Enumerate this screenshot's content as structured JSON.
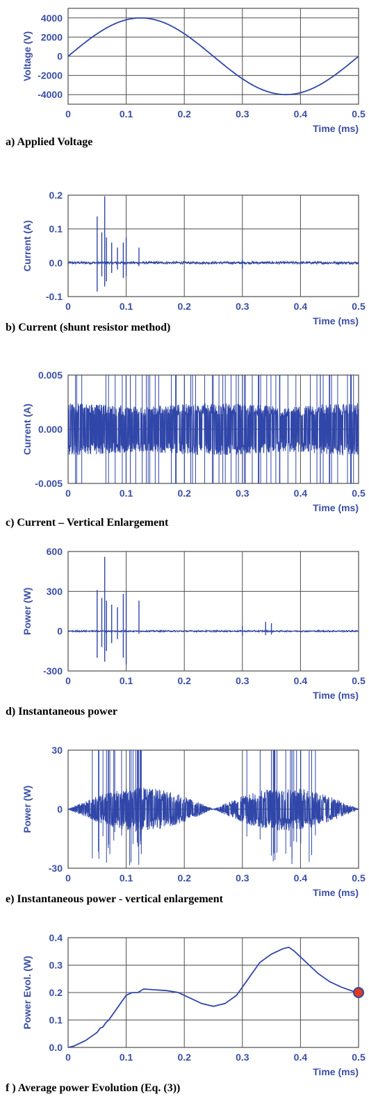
{
  "colors": {
    "line": "#3046a8",
    "text": "#3a4ea6",
    "grid": "#4d4d4d",
    "marker": "#e03a20"
  },
  "chart_data": [
    {
      "type": "line",
      "caption": "a) Applied Voltage",
      "ylabel": "Voltage (V)",
      "xlabel": "Time (ms)",
      "xlim": [
        0,
        0.5
      ],
      "ylim": [
        -5000,
        5000
      ],
      "xticks": [
        "0",
        "0.1",
        "0.2",
        "0.3",
        "0.4",
        "0.5"
      ],
      "yticks": [
        {
          "v": 4000,
          "t": "4000"
        },
        {
          "v": 2000,
          "t": "2000"
        },
        {
          "v": 0,
          "t": "0"
        },
        {
          "v": -2000,
          "t": "-2000"
        },
        {
          "v": -4000,
          "t": "-4000"
        }
      ],
      "grid": true,
      "series": [
        {
          "kind": "sine",
          "amplitude": 4000,
          "period": 0.5
        }
      ]
    },
    {
      "type": "line",
      "caption": "b) Current (shunt resistor method)",
      "ylabel": "Current (A)",
      "xlabel": "Time (ms)",
      "xlim": [
        0,
        0.5
      ],
      "ylim": [
        -0.1,
        0.2
      ],
      "xticks": [
        "0",
        "0.1",
        "0.2",
        "0.3",
        "0.4",
        "0.5"
      ],
      "yticks": [
        {
          "v": 0.2,
          "t": "0.2"
        },
        {
          "v": 0.1,
          "t": "0.1"
        },
        {
          "v": 0.0,
          "t": "0.0"
        },
        {
          "v": -0.1,
          "t": "-0.1"
        }
      ],
      "grid": true,
      "series": [
        {
          "kind": "noise",
          "noise": 0.004,
          "spikes": [
            [
              0.05,
              0.137,
              -0.085
            ],
            [
              0.058,
              0.09,
              -0.04
            ],
            [
              0.063,
              0.197,
              -0.07
            ],
            [
              0.066,
              0.075,
              -0.055
            ],
            [
              0.075,
              0.06,
              -0.03
            ],
            [
              0.085,
              0.045,
              -0.02
            ],
            [
              0.095,
              0.06,
              -0.045
            ],
            [
              0.1,
              0.075,
              -0.04
            ],
            [
              0.122,
              0.045,
              -0.01
            ],
            [
              0.3,
              0.01,
              -0.018
            ]
          ]
        }
      ]
    },
    {
      "type": "line",
      "caption": "c) Current – Vertical Enlargement",
      "ylabel": "Current (A)",
      "xlabel": "Time (ms)",
      "xlim": [
        0,
        0.5
      ],
      "ylim": [
        -0.005,
        0.005
      ],
      "xticks": [
        "0",
        "0.1",
        "0.2",
        "0.3",
        "0.4",
        "0.5"
      ],
      "yticks": [
        {
          "v": 0.005,
          "t": "0.005"
        },
        {
          "v": 0.0,
          "t": "0.000"
        },
        {
          "v": -0.005,
          "t": "-0.005"
        }
      ],
      "grid": true,
      "series": [
        {
          "kind": "band",
          "band": 0.0024,
          "spikeDensity": 60
        }
      ]
    },
    {
      "type": "line",
      "caption": "d) Instantaneous power",
      "ylabel": "Power (W)",
      "xlabel": "Time (ms)",
      "xlim": [
        0,
        0.5
      ],
      "ylim": [
        -300,
        600
      ],
      "xticks": [
        "0",
        "0.1",
        "0.2",
        "0.3",
        "0.4",
        "0.5"
      ],
      "yticks": [
        {
          "v": 600,
          "t": "600"
        },
        {
          "v": 300,
          "t": "300"
        },
        {
          "v": 0,
          "t": "0"
        },
        {
          "v": -300,
          "t": "-300"
        }
      ],
      "grid": true,
      "series": [
        {
          "kind": "noise",
          "noise": 6,
          "spikes": [
            [
              0.05,
              310,
              -200
            ],
            [
              0.058,
              250,
              -120
            ],
            [
              0.063,
              560,
              -230
            ],
            [
              0.066,
              230,
              -150
            ],
            [
              0.075,
              200,
              -90
            ],
            [
              0.085,
              180,
              -60
            ],
            [
              0.095,
              280,
              -200
            ],
            [
              0.1,
              300,
              -250
            ],
            [
              0.122,
              230,
              -20
            ],
            [
              0.34,
              70,
              -30
            ],
            [
              0.35,
              60,
              -25
            ],
            [
              0.3,
              40,
              -35
            ]
          ]
        }
      ]
    },
    {
      "type": "line",
      "caption": "e) Instantaneous power - vertical enlargement",
      "ylabel": "Power (W)",
      "xlabel": "Time (ms)",
      "xlim": [
        0,
        0.5
      ],
      "ylim": [
        -30,
        30
      ],
      "xticks": [
        "0",
        "0.1",
        "0.2",
        "0.3",
        "0.4",
        "0.5"
      ],
      "yticks": [
        {
          "v": 30,
          "t": "30"
        },
        {
          "v": 0,
          "t": "0"
        },
        {
          "v": -30,
          "t": "-30"
        }
      ],
      "grid": true,
      "series": [
        {
          "kind": "lobes",
          "lobe": 11,
          "spikeDensity": 40
        }
      ]
    },
    {
      "type": "line",
      "caption": "f ) Average power Evolution  (Eq. (3))",
      "ylabel": "Power Evol. (W)",
      "xlabel": "Time (ms)",
      "xlim": [
        0,
        0.5
      ],
      "ylim": [
        0,
        0.4
      ],
      "xticks": [
        "0",
        "0.1",
        "0.2",
        "0.3",
        "0.4",
        "0.5"
      ],
      "yticks": [
        {
          "v": 0.4,
          "t": "0.4"
        },
        {
          "v": 0.3,
          "t": "0.3"
        },
        {
          "v": 0.2,
          "t": "0.2"
        },
        {
          "v": 0.1,
          "t": "0.1"
        },
        {
          "v": 0.0,
          "t": "0.0"
        }
      ],
      "grid": true,
      "series": [
        {
          "kind": "points",
          "x": [
            0,
            0.01,
            0.02,
            0.03,
            0.04,
            0.05,
            0.055,
            0.06,
            0.065,
            0.07,
            0.08,
            0.09,
            0.1,
            0.11,
            0.12,
            0.13,
            0.15,
            0.17,
            0.19,
            0.21,
            0.23,
            0.25,
            0.27,
            0.29,
            0.31,
            0.33,
            0.35,
            0.37,
            0.38,
            0.39,
            0.41,
            0.43,
            0.45,
            0.47,
            0.49,
            0.5
          ],
          "y": [
            0,
            0.005,
            0.015,
            0.025,
            0.04,
            0.055,
            0.07,
            0.075,
            0.09,
            0.1,
            0.13,
            0.16,
            0.19,
            0.2,
            0.2,
            0.213,
            0.21,
            0.207,
            0.2,
            0.18,
            0.16,
            0.15,
            0.16,
            0.19,
            0.25,
            0.31,
            0.34,
            0.36,
            0.365,
            0.35,
            0.31,
            0.27,
            0.24,
            0.22,
            0.205,
            0.2
          ]
        }
      ],
      "marker": {
        "x": 0.5,
        "y": 0.2
      }
    }
  ]
}
